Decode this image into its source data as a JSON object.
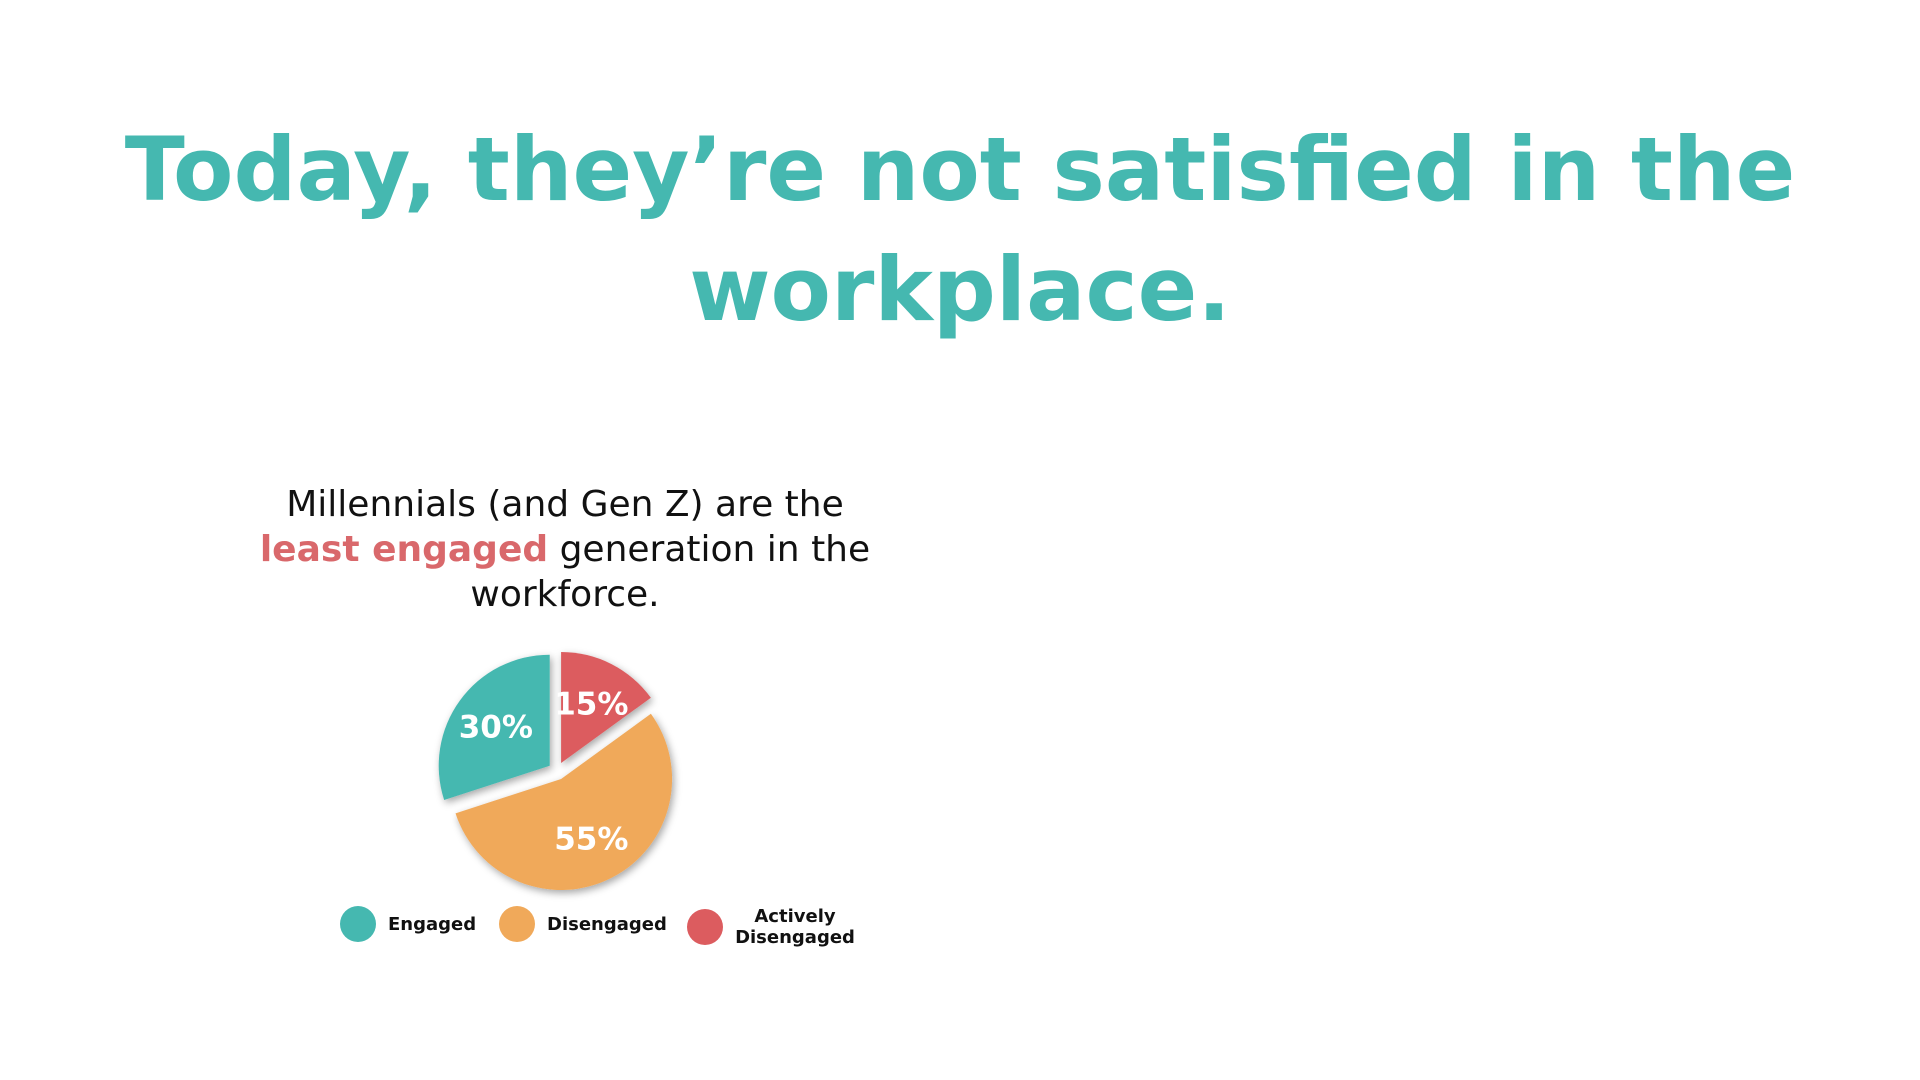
{
  "chart_data": {
    "type": "pie",
    "title": "Today, they’re not satisfied in the workplace.",
    "subtitle": [
      "Millennials (and Gen Z) are the",
      "least engaged",
      "generation in the workforce."
    ],
    "categories": [
      "Engaged",
      "Disengaged",
      "Actively Disengaged"
    ],
    "values": [
      30,
      55,
      15
    ],
    "value_labels": [
      "30%",
      "55%",
      "15%"
    ],
    "colors": [
      "#45b8b0",
      "#f0a95a",
      "#dc5c5f"
    ]
  }
}
